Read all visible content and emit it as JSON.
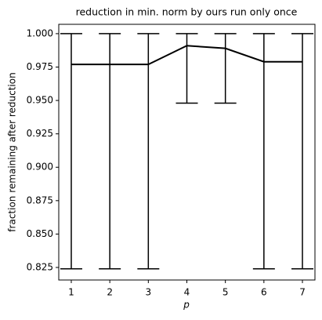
{
  "chart_data": {
    "type": "line",
    "title": "reduction in min. norm by ours run only once",
    "xlabel": "p",
    "ylabel": "fraction remaining after reduction",
    "x": [
      1,
      2,
      3,
      4,
      5,
      6,
      7
    ],
    "values": [
      0.977,
      0.977,
      0.977,
      0.991,
      0.989,
      0.979,
      0.979
    ],
    "lower": [
      0.824,
      0.824,
      0.824,
      0.948,
      0.948,
      0.824,
      0.824
    ],
    "upper": [
      1.0,
      1.0,
      1.0,
      1.0,
      1.0,
      1.0,
      1.0
    ],
    "color": "#000000",
    "xlim": [
      0.675,
      7.325
    ],
    "ylim": [
      0.8156,
      1.007
    ],
    "xticks": [
      1,
      2,
      3,
      4,
      5,
      6,
      7
    ],
    "yticks": [
      0.825,
      {
        "value": 0.85,
        "label": "0.850"
      },
      0.875,
      {
        "value": 0.9,
        "label": "0.900"
      },
      0.925,
      {
        "value": 0.95,
        "label": "0.950"
      },
      0.975,
      {
        "value": 1.0,
        "label": "1.000"
      }
    ]
  }
}
